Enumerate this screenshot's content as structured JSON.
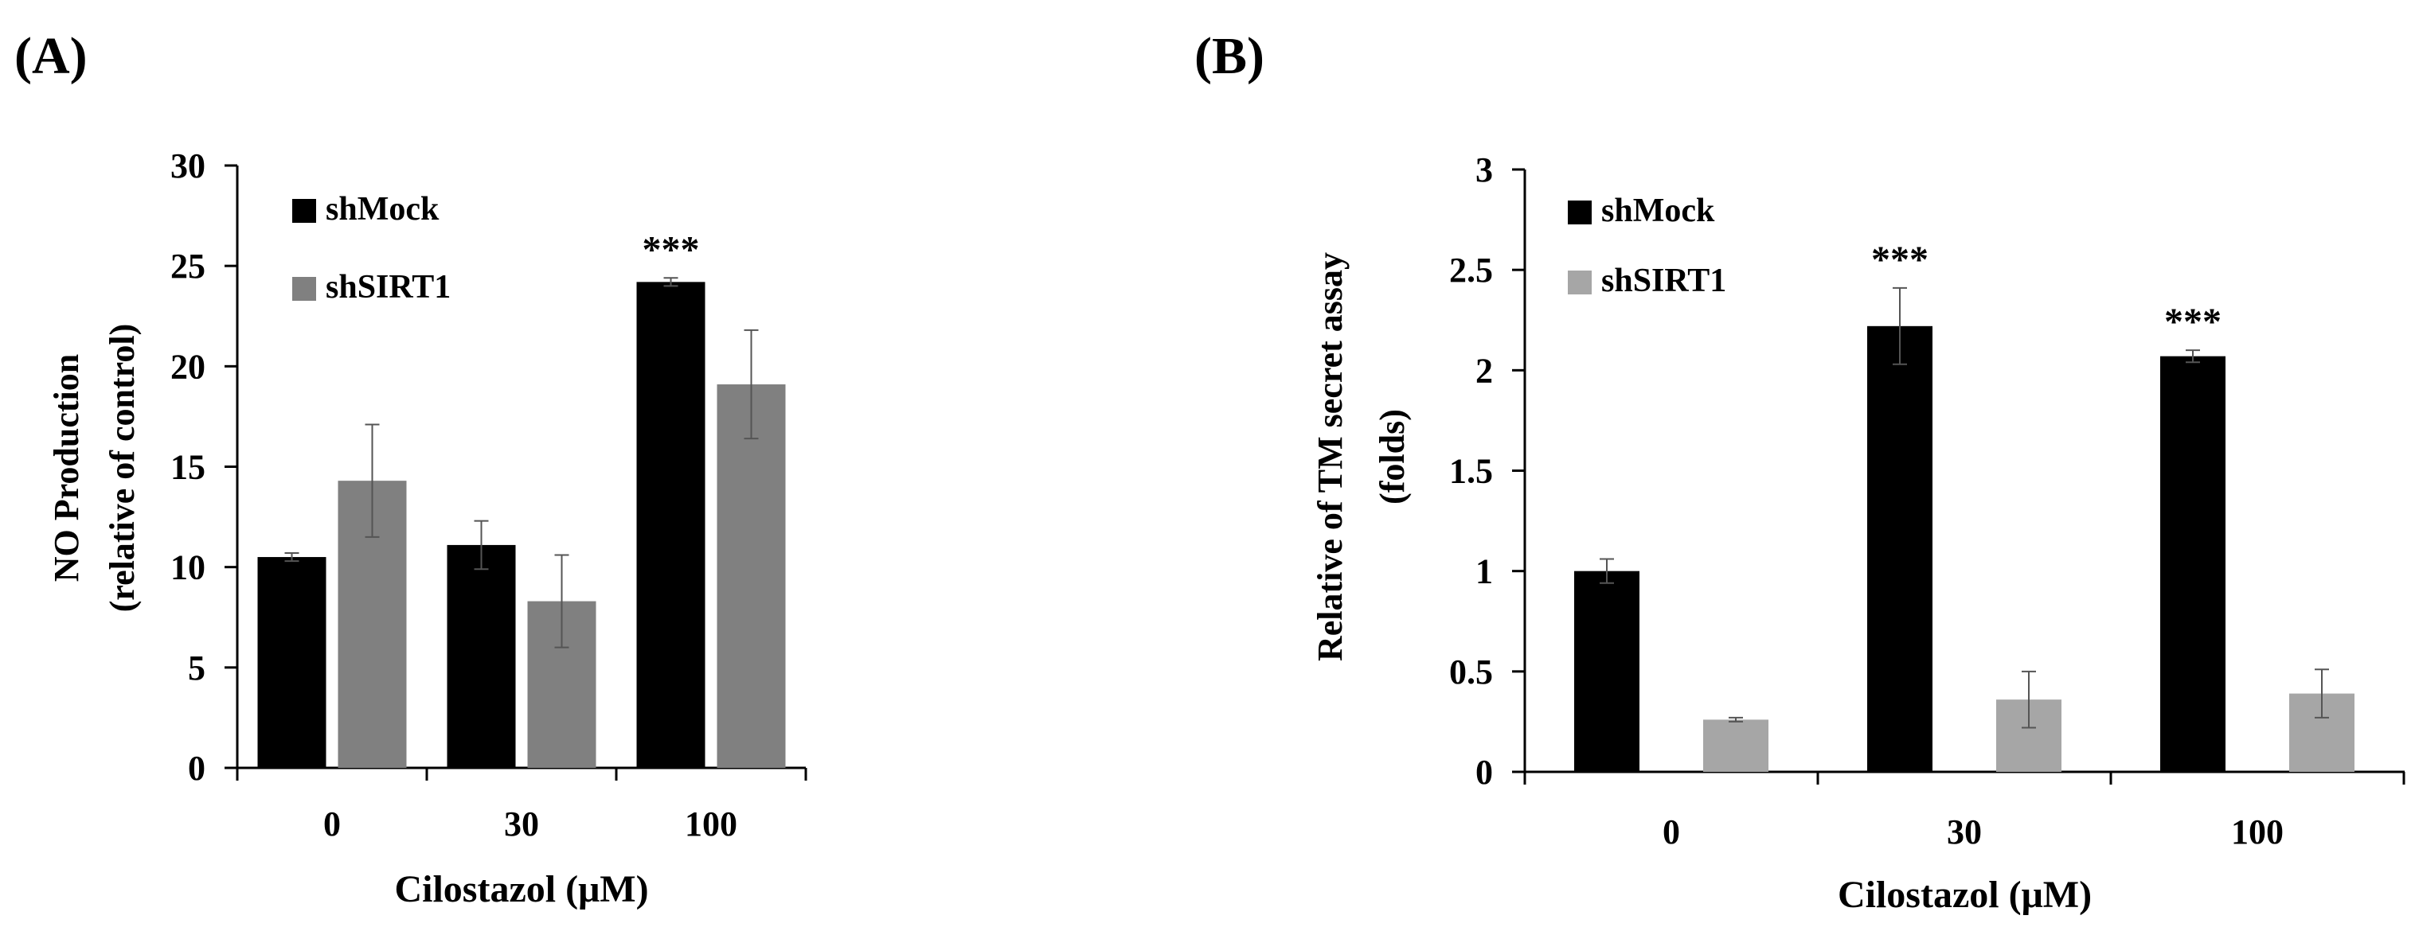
{
  "chart_data": [
    {
      "panel_label": "(A)",
      "type": "bar",
      "categories": [
        "0",
        "30",
        "100"
      ],
      "series": [
        {
          "name": "shMock",
          "color": "#000000",
          "values": [
            10.5,
            11.1,
            24.2
          ],
          "errors": [
            0.2,
            1.2,
            0.2
          ]
        },
        {
          "name": "shSIRT1",
          "color": "#808080",
          "values": [
            14.3,
            8.3,
            19.1
          ],
          "errors": [
            2.8,
            2.3,
            2.7
          ]
        }
      ],
      "xlabel": "Cilostazol (μM)",
      "ylabel_lines": [
        "NO Production",
        "(relative of control)"
      ],
      "ylim": [
        0,
        30
      ],
      "yticks": [
        "0",
        "5",
        "10",
        "15",
        "20",
        "25",
        "30"
      ],
      "annotations": [
        {
          "category": "100",
          "series": "shMock",
          "text": "***"
        }
      ],
      "legend_position": "top-left"
    },
    {
      "panel_label": "(B)",
      "type": "bar",
      "categories": [
        "0",
        "30",
        "100"
      ],
      "series": [
        {
          "name": "shMock",
          "color": "#000000",
          "values": [
            1.0,
            2.22,
            2.07
          ],
          "errors": [
            0.06,
            0.19,
            0.03
          ]
        },
        {
          "name": "shSIRT1",
          "color": "#a6a6a6",
          "values": [
            0.26,
            0.36,
            0.39
          ],
          "errors": [
            0.01,
            0.14,
            0.12
          ]
        }
      ],
      "xlabel": "Cilostazol (μM)",
      "ylabel_lines": [
        "Relative of TM secret assay",
        "(folds)"
      ],
      "ylim": [
        0,
        3
      ],
      "yticks": [
        "0",
        "0.5",
        "1",
        "1.5",
        "2",
        "2.5",
        "3"
      ],
      "annotations": [
        {
          "category": "30",
          "series": "shMock",
          "text": "***"
        },
        {
          "category": "100",
          "series": "shMock",
          "text": "***"
        }
      ],
      "legend_position": "top-left"
    }
  ]
}
